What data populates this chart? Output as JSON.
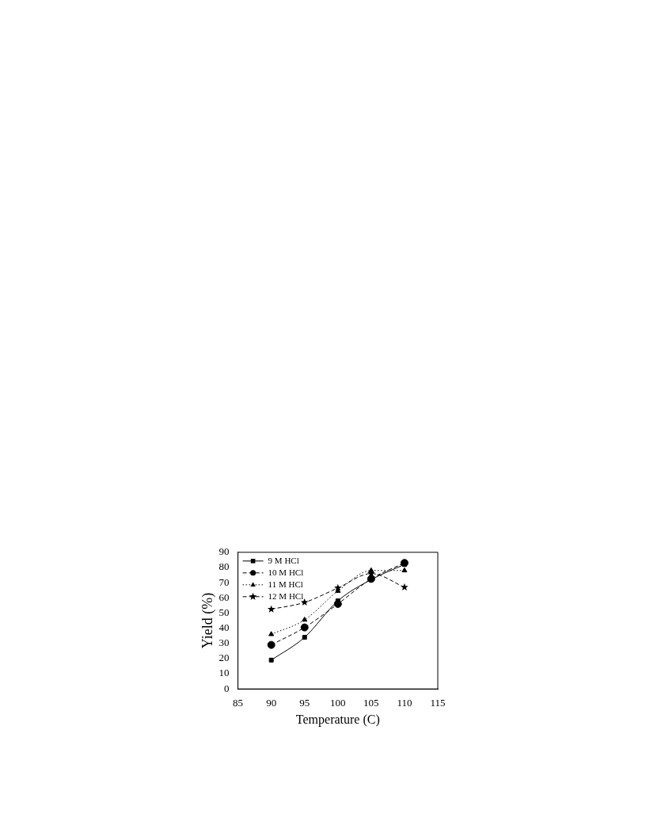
{
  "chart_data": {
    "type": "line",
    "xlabel": "Temperature (C)",
    "ylabel": "Yield (%)",
    "x": [
      90,
      95,
      100,
      105,
      110
    ],
    "series": [
      {
        "name": "9 M HCl",
        "color": "#000000",
        "marker": "square",
        "line_style": "solid",
        "values": [
          19,
          34,
          58,
          72,
          82
        ]
      },
      {
        "name": "10 M HCl",
        "color": "#000000",
        "marker": "circle",
        "line_style": "dashed",
        "values": [
          29,
          40.5,
          56,
          72.5,
          83
        ]
      },
      {
        "name": "11 M HCl",
        "color": "#000000",
        "marker": "triangle",
        "line_style": "dotted",
        "values": [
          36,
          45.5,
          64.5,
          78,
          78
        ]
      },
      {
        "name": "12 M HCl",
        "color": "#000000",
        "marker": "star",
        "line_style": "dashed",
        "values": [
          52.5,
          57,
          66.5,
          76,
          67
        ]
      }
    ],
    "xlim": [
      85,
      115
    ],
    "xticks": [
      85,
      90,
      95,
      100,
      105,
      110,
      115
    ],
    "ylim": [
      0,
      90
    ],
    "yticks": [
      0,
      10,
      20,
      30,
      40,
      50,
      60,
      70,
      80,
      90
    ],
    "grid": false,
    "legend": "top left"
  }
}
